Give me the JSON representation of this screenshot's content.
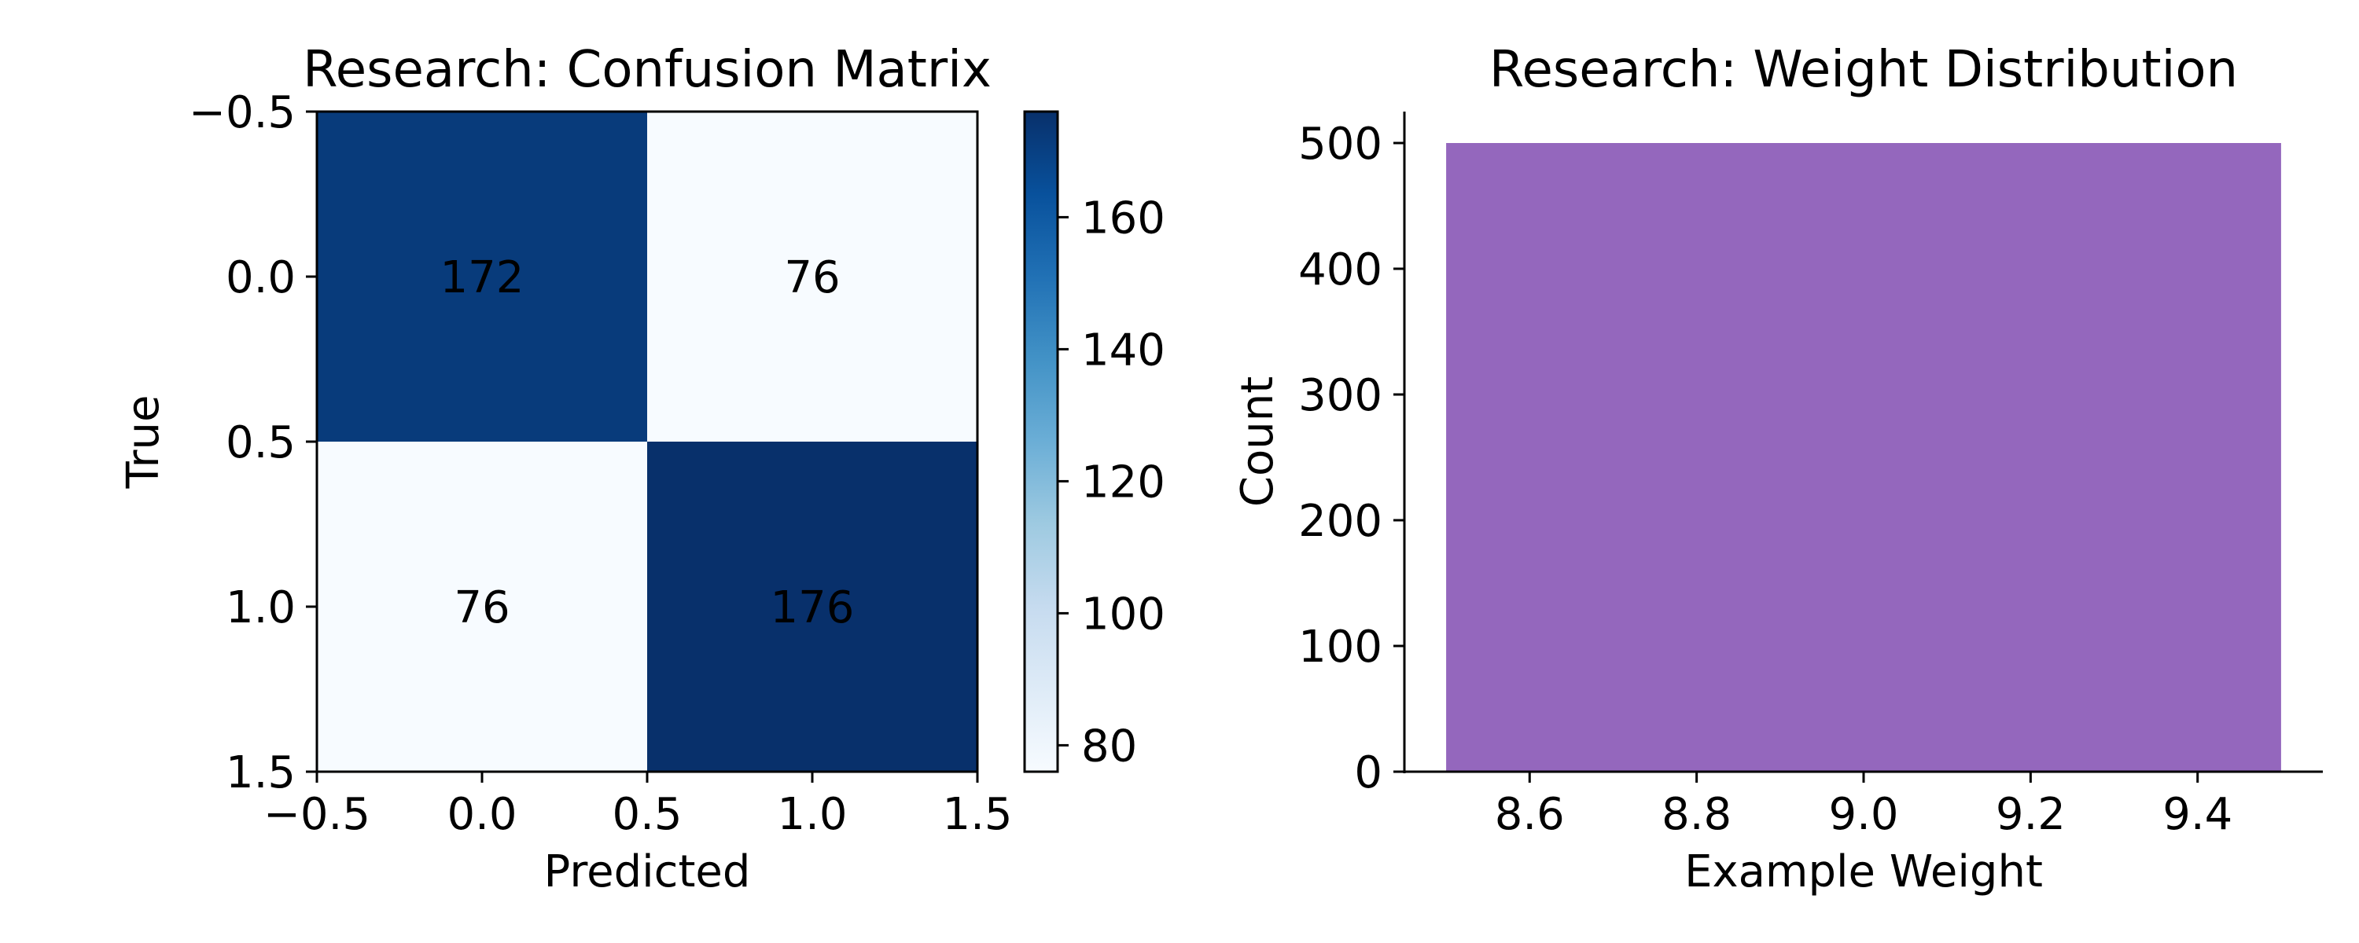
{
  "chart_data": [
    {
      "type": "heatmap",
      "title": "Research: Confusion Matrix",
      "xlabel": "Predicted",
      "ylabel": "True",
      "matrix": [
        [
          172,
          76
        ],
        [
          76,
          176
        ]
      ],
      "xlim": [
        -0.5,
        1.5
      ],
      "ylim": [
        1.5,
        -0.5
      ],
      "xticks": [
        "−0.5",
        "0.0",
        "0.5",
        "1.0",
        "1.5"
      ],
      "yticks": [
        "−0.5",
        "0.0",
        "0.5",
        "1.0",
        "1.5"
      ],
      "colorbar": {
        "colormap": "Blues",
        "min": 76,
        "max": 176,
        "ticks": [
          80,
          100,
          120,
          140,
          160
        ],
        "low_color": "#f7fbff",
        "high_color": "#08306b"
      }
    },
    {
      "type": "bar",
      "title": "Research: Weight Distribution",
      "xlabel": "Example Weight",
      "ylabel": "Count",
      "bins": [
        {
          "x0": 8.5,
          "x1": 9.5,
          "count": 500
        }
      ],
      "xlim": [
        8.45,
        9.55
      ],
      "ylim": [
        0,
        525
      ],
      "xticks": [
        8.6,
        8.8,
        9.0,
        9.2,
        9.4
      ],
      "yticks": [
        0,
        100,
        200,
        300,
        400,
        500
      ],
      "bar_color": "#9467bd",
      "grid": false
    }
  ]
}
